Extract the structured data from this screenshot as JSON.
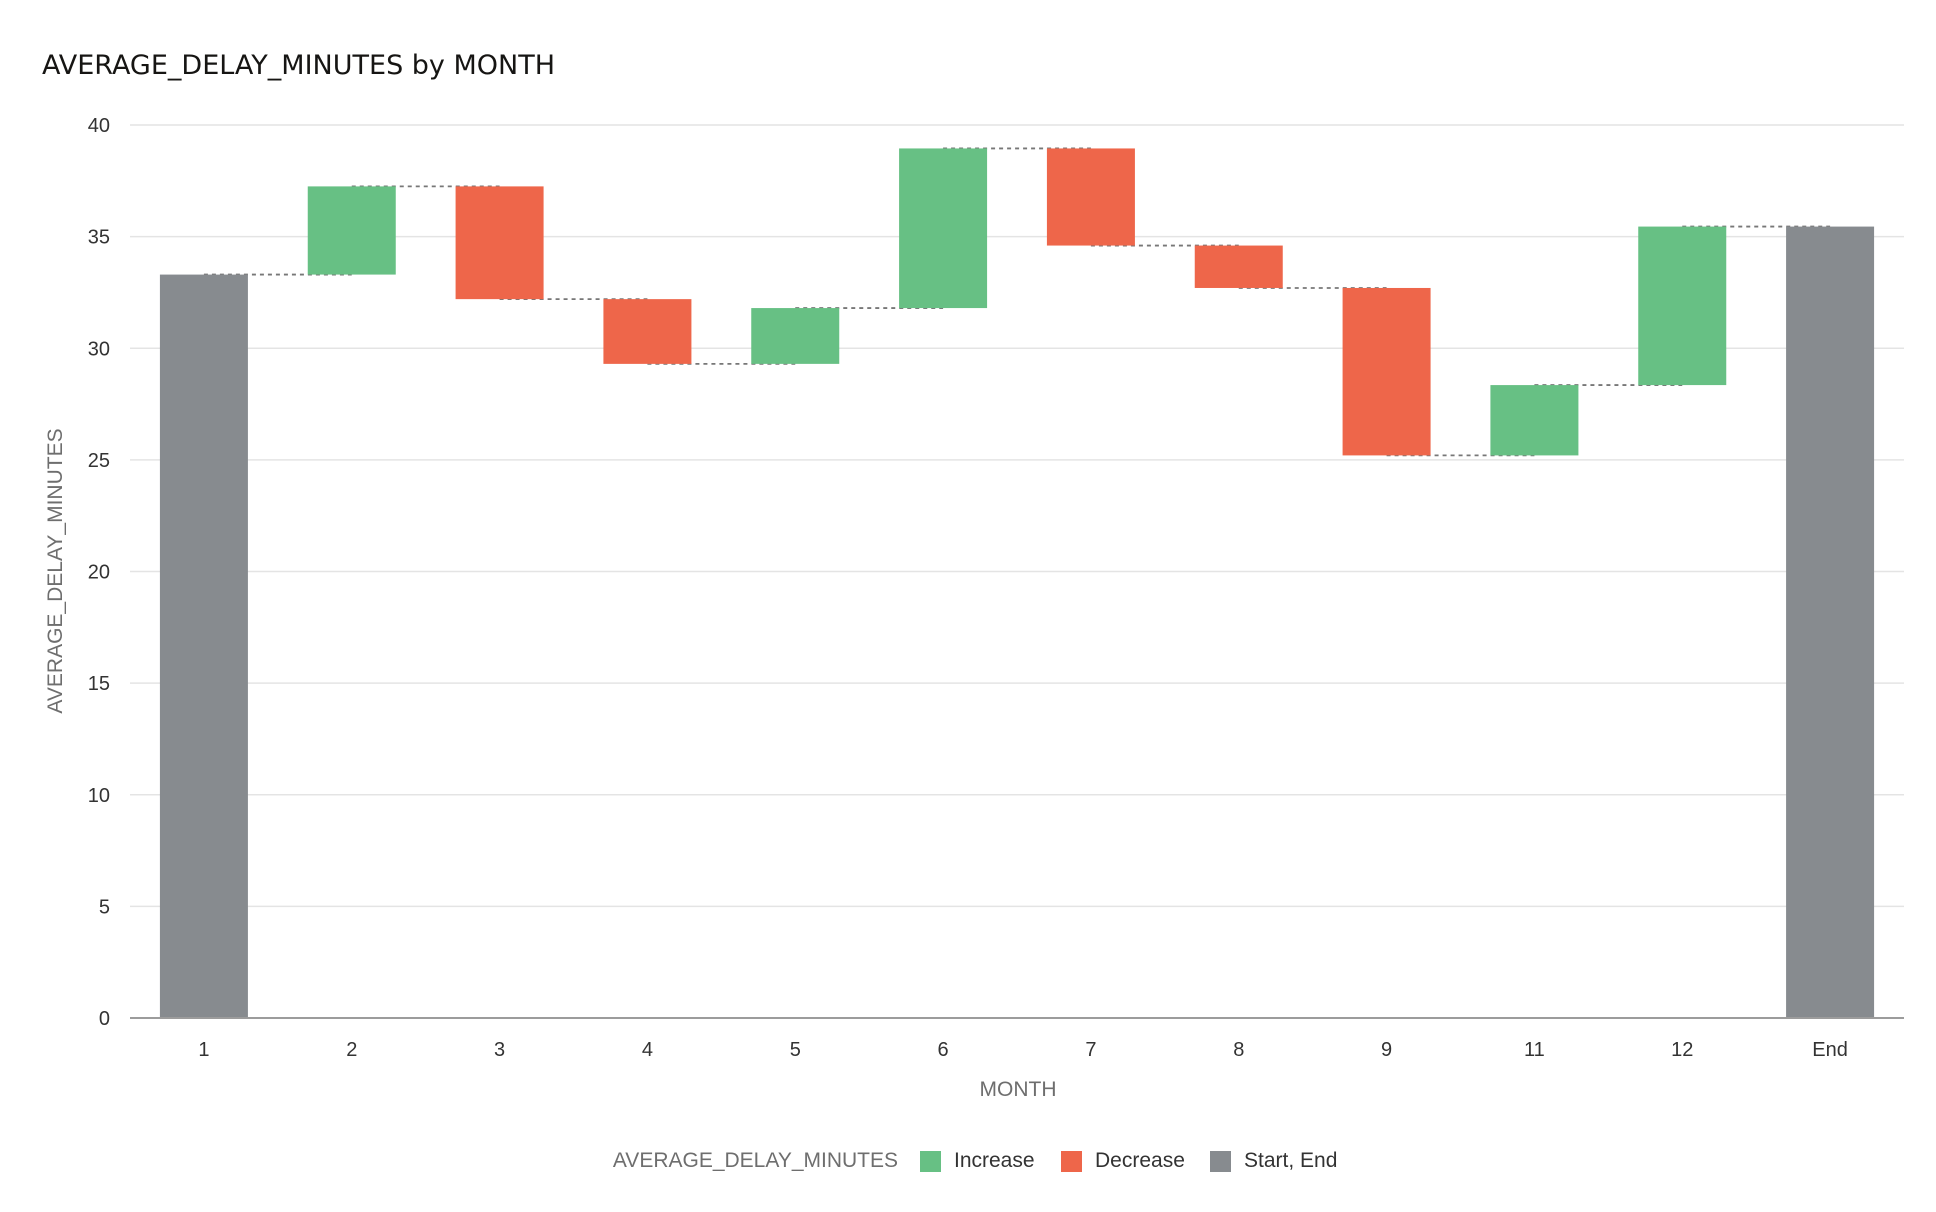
{
  "chart_data": {
    "type": "bar",
    "subtype": "waterfall",
    "title": "AVERAGE_DELAY_MINUTES by MONTH",
    "xlabel": "MONTH",
    "ylabel": "AVERAGE_DELAY_MINUTES",
    "ylim": [
      0,
      40
    ],
    "yticks": [
      0,
      5,
      10,
      15,
      20,
      25,
      30,
      35,
      40
    ],
    "grid": true,
    "legend_position": "bottom",
    "legend": {
      "title": "AVERAGE_DELAY_MINUTES",
      "items": [
        {
          "label": "Increase",
          "color": "#67c084"
        },
        {
          "label": "Decrease",
          "color": "#ee664a"
        },
        {
          "label": "Start, End",
          "color": "#878b8f"
        }
      ]
    },
    "colors": {
      "increase": "#67c084",
      "decrease": "#ee664a",
      "total": "#878b8f"
    },
    "categories": [
      "1",
      "2",
      "3",
      "4",
      "5",
      "6",
      "7",
      "8",
      "9",
      "11",
      "12",
      "End"
    ],
    "bars": [
      {
        "category": "1",
        "kind": "total",
        "start": 0,
        "end": 33.3
      },
      {
        "category": "2",
        "kind": "increase",
        "start": 33.3,
        "end": 37.25
      },
      {
        "category": "3",
        "kind": "decrease",
        "start": 37.25,
        "end": 32.2
      },
      {
        "category": "4",
        "kind": "decrease",
        "start": 32.2,
        "end": 29.3
      },
      {
        "category": "5",
        "kind": "increase",
        "start": 29.3,
        "end": 31.8
      },
      {
        "category": "6",
        "kind": "increase",
        "start": 31.8,
        "end": 38.95
      },
      {
        "category": "7",
        "kind": "decrease",
        "start": 38.95,
        "end": 34.6
      },
      {
        "category": "8",
        "kind": "decrease",
        "start": 34.6,
        "end": 32.7
      },
      {
        "category": "9",
        "kind": "decrease",
        "start": 32.7,
        "end": 25.2
      },
      {
        "category": "11",
        "kind": "increase",
        "start": 25.2,
        "end": 28.35
      },
      {
        "category": "12",
        "kind": "increase",
        "start": 28.35,
        "end": 35.45
      },
      {
        "category": "End",
        "kind": "total",
        "start": 0,
        "end": 35.45
      }
    ]
  }
}
